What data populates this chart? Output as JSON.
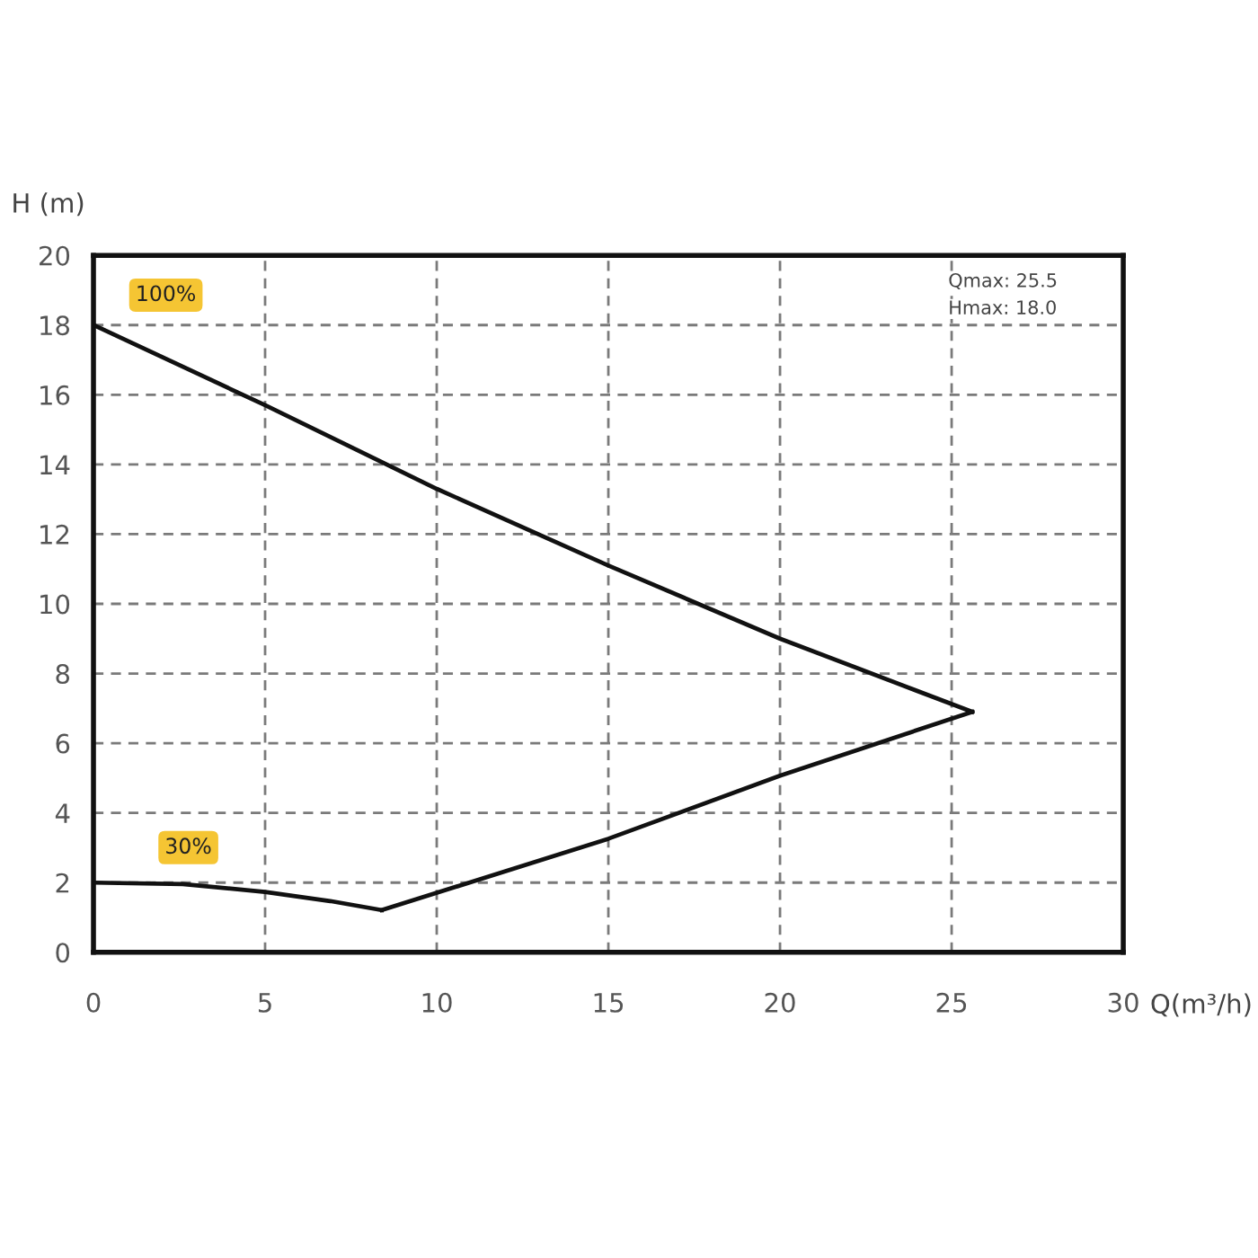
{
  "chart_data": {
    "type": "line",
    "xlabel": "Q(m³/h)",
    "ylabel": "H (m)",
    "annotations": [
      "Qmax: 25.5",
      "Hmax: 18.0"
    ],
    "series": [
      {
        "name": "100%",
        "color": "#111111",
        "x": [
          0,
          5,
          10,
          15,
          20,
          25.6
        ],
        "values": [
          18,
          15.7,
          13.3,
          11.1,
          9.0,
          6.9
        ]
      },
      {
        "name": "30%",
        "color": "#111111",
        "x": [
          0,
          2.6,
          5,
          6.9,
          8.4
        ],
        "values": [
          2,
          1.96,
          1.73,
          1.47,
          1.21
        ]
      },
      {
        "color": "#111111",
        "x": [
          8.4,
          15,
          20,
          25.6
        ],
        "values": [
          1.21,
          3.26,
          5.07,
          6.9
        ]
      }
    ],
    "xlim": [
      0,
      30
    ],
    "xticks": [
      0,
      5,
      10,
      15,
      20,
      25,
      30
    ],
    "ylim": [
      0,
      20
    ],
    "yticks": [
      0,
      2,
      4,
      6,
      8,
      10,
      12,
      14,
      16,
      18,
      20
    ],
    "grid": true,
    "line_style": "solid"
  }
}
